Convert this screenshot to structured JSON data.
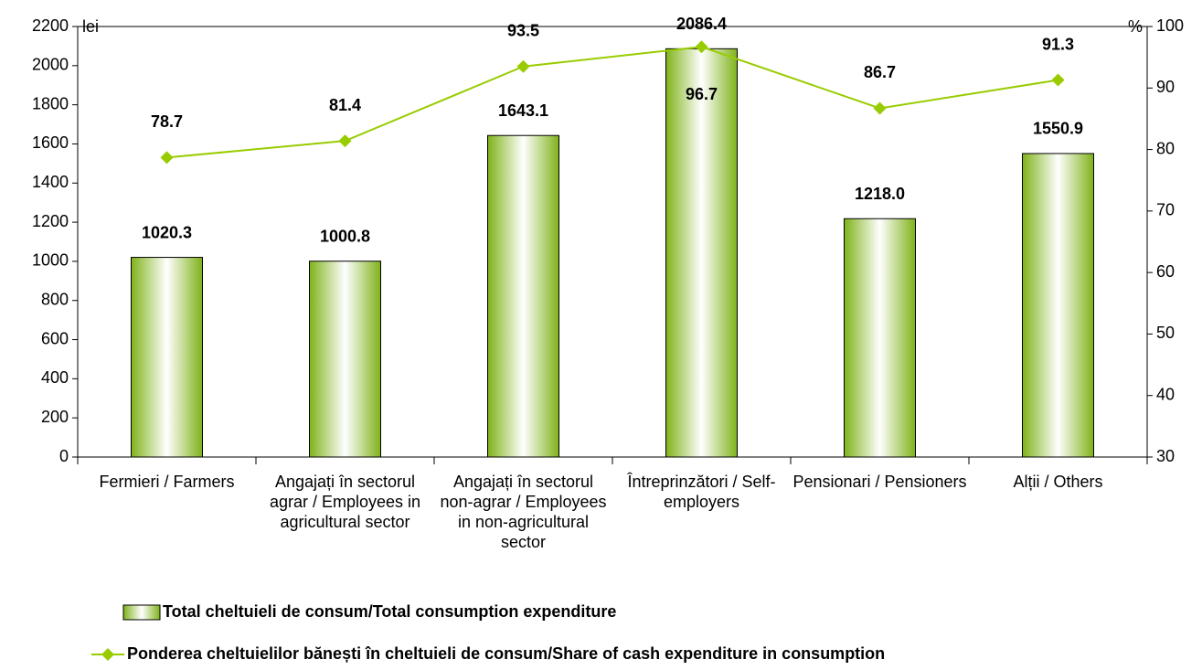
{
  "chart_data": {
    "type": "bar_line",
    "y_label": "lei",
    "y2_label": "%",
    "categories": [
      "Fermieri / Farmers",
      "Angajați în sectorul agrar / Employees in agricultural sector",
      "Angajați în sectorul non-agrar / Employees in non-agricultural sector",
      "Întreprinzători / Self-employers",
      "Pensionari / Pensioners",
      "Alții / Others"
    ],
    "series": [
      {
        "name": "Total cheltuieli de consum/Total consumption expenditure",
        "type": "bar",
        "color": "#99cc33",
        "values": [
          1020.3,
          1000.8,
          1643.1,
          2086.4,
          1218.0,
          1550.9
        ],
        "value_labels": [
          "1020.3",
          "1000.8",
          "1643.1",
          "2086.4",
          "1218.0",
          "1550.9"
        ]
      },
      {
        "name": "Ponderea cheltuielilor bănești în cheltuieli de consum/Share of cash expenditure in consumption",
        "type": "line",
        "color": "#99cc00",
        "axis": "y2",
        "values": [
          78.7,
          81.4,
          93.5,
          96.7,
          86.7,
          91.3
        ]
      }
    ],
    "ylim": [
      0,
      2200
    ],
    "yticks": [
      0,
      200,
      400,
      600,
      800,
      1000,
      1200,
      1400,
      1600,
      1800,
      2000,
      2200
    ],
    "y2lim": [
      30,
      100
    ],
    "y2ticks": [
      30,
      40,
      50,
      60,
      70,
      80,
      90,
      100
    ],
    "grid": false,
    "legend": "bottom"
  }
}
